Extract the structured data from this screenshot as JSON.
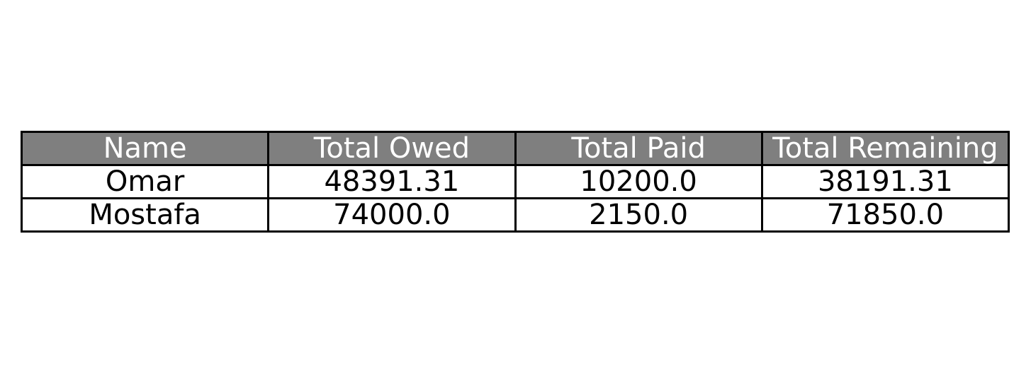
{
  "chart_data": {
    "type": "table",
    "columns": [
      "Name",
      "Total Owed",
      "Total Paid",
      "Total Remaining"
    ],
    "rows": [
      [
        "Omar",
        "48391.31",
        "10200.0",
        "38191.31"
      ],
      [
        "Mostafa",
        "74000.0",
        "2150.0",
        "71850.0"
      ]
    ],
    "colors": {
      "header_background": "#7f7f7f",
      "header_text": "#ffffff",
      "cell_background": "#ffffff",
      "cell_text": "#000000",
      "border": "#000000"
    }
  }
}
